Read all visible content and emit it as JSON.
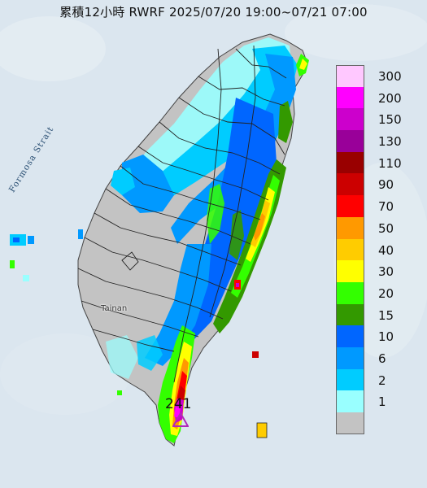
{
  "title": "累積12小時 RWRF 2025/07/20 19:00~07/21 07:00",
  "strait_label": "Formosa Strait",
  "city_label": "Tainan",
  "max_value": "241",
  "colors": {
    "sea": "#dbe6ef",
    "land_other": "#e8ece8",
    "no_rain": "#c3c3c3",
    "county_line": "#222222",
    "marker": "#b02ab9"
  },
  "legend": [
    {
      "label": "300",
      "color": "#ffc8ff"
    },
    {
      "label": "200",
      "color": "#ff00ff"
    },
    {
      "label": "150",
      "color": "#cc00cc"
    },
    {
      "label": "130",
      "color": "#990099"
    },
    {
      "label": "110",
      "color": "#990000"
    },
    {
      "label": "90",
      "color": "#cc0000"
    },
    {
      "label": "70",
      "color": "#ff0000"
    },
    {
      "label": "50",
      "color": "#ff9900"
    },
    {
      "label": "40",
      "color": "#ffcc00"
    },
    {
      "label": "30",
      "color": "#ffff00"
    },
    {
      "label": "20",
      "color": "#33ff00"
    },
    {
      "label": "15",
      "color": "#339900"
    },
    {
      "label": "10",
      "color": "#0066ff"
    },
    {
      "label": "6",
      "color": "#0099ff"
    },
    {
      "label": "2",
      "color": "#00ccff"
    },
    {
      "label": "1",
      "color": "#99ffff"
    },
    {
      "label": "",
      "color": "#c3c3c3"
    }
  ]
}
